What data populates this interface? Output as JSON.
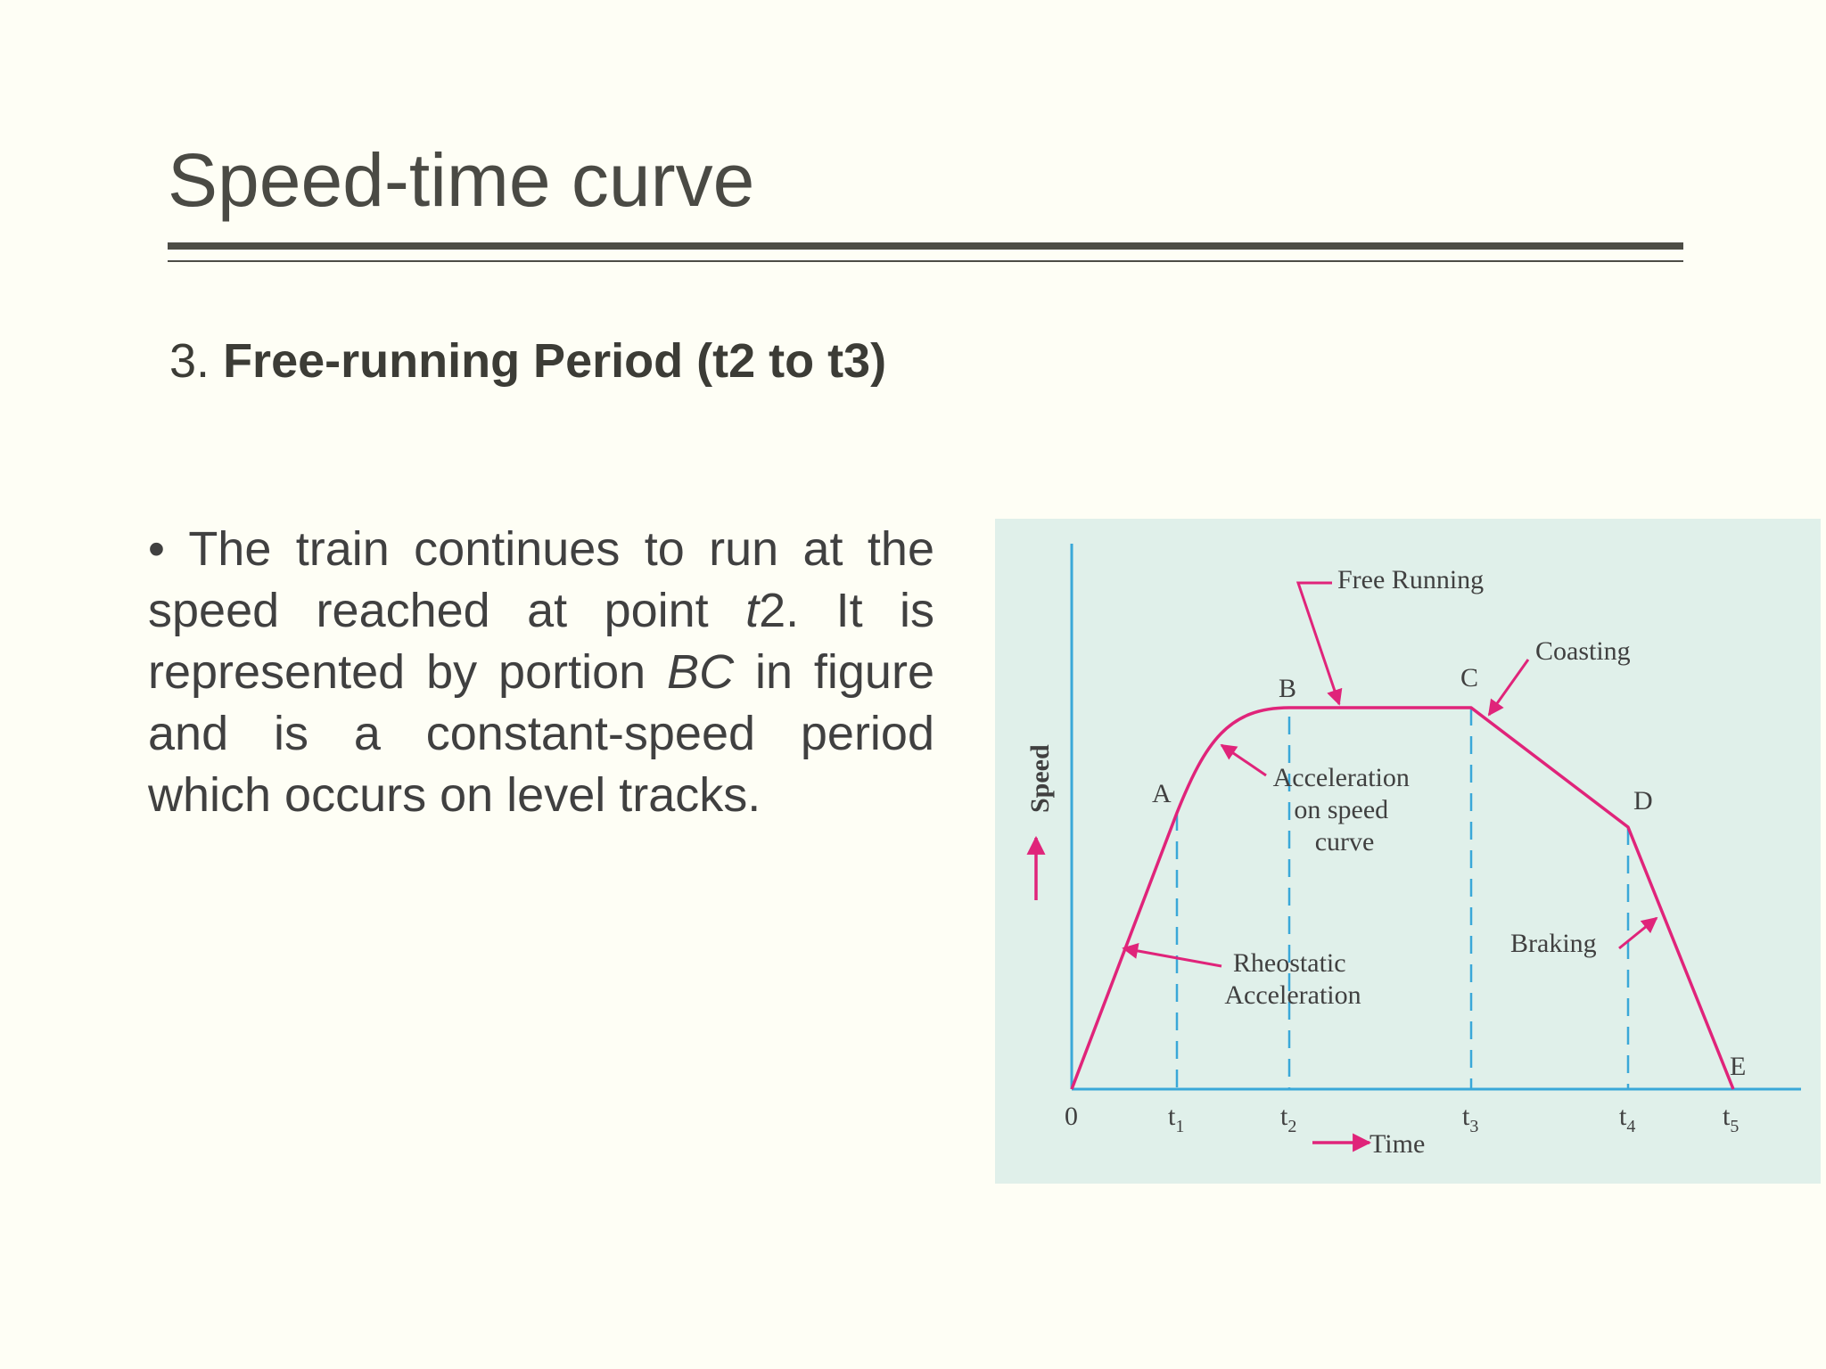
{
  "slide": {
    "title": "Speed-time curve",
    "subheading_number": "3.",
    "subheading_bold": "Free-running Period (t2 to t3)",
    "bullet": {
      "marker": "•",
      "part1": "The train continues to run at the speed reached at point ",
      "italic1": "t",
      "part2": "2. It is represented by portion ",
      "italic2": "BC",
      "part3": " in figure and is a constant-speed period which occurs on level tracks."
    }
  },
  "figure": {
    "axis_y_label": "Speed",
    "axis_x_label": "Time",
    "origin_label": "0",
    "points": {
      "A": "A",
      "B": "B",
      "C": "C",
      "D": "D",
      "E": "E"
    },
    "ticks": {
      "t1_base": "t",
      "t1_sub": "1",
      "t2_base": "t",
      "t2_sub": "2",
      "t3_base": "t",
      "t3_sub": "3",
      "t4_base": "t",
      "t4_sub": "4",
      "t5_base": "t",
      "t5_sub": "5"
    },
    "annotations": {
      "free_running": "Free Running",
      "coasting": "Coasting",
      "accel_speed_curve_line1": "Acceleration",
      "accel_speed_curve_line2": "on speed",
      "accel_speed_curve_line3": "curve",
      "rheostatic_line1": "Rheostatic",
      "rheostatic_line2": "Acceleration",
      "braking": "Braking"
    },
    "colors": {
      "curve": "#e0247a",
      "axes": "#3aa8d8",
      "background": "#e0f0ea"
    }
  }
}
